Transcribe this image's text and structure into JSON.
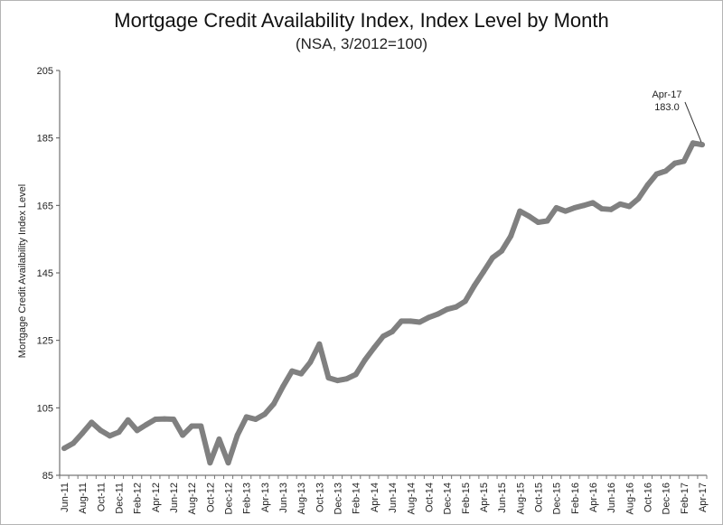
{
  "chart_data": {
    "type": "line",
    "title": "Mortgage Credit Availability Index, Index Level by Month",
    "subtitle": "(NSA, 3/2012=100)",
    "ylabel": "Mortgage Credit Availability Index Level",
    "xlabel": "",
    "ylim": [
      85,
      205
    ],
    "yticks": [
      85,
      105,
      125,
      145,
      165,
      185,
      205
    ],
    "grid": false,
    "x": [
      "Jun-11",
      "Jul-11",
      "Aug-11",
      "Sep-11",
      "Oct-11",
      "Nov-11",
      "Dec-11",
      "Jan-12",
      "Feb-12",
      "Mar-12",
      "Apr-12",
      "May-12",
      "Jun-12",
      "Jul-12",
      "Aug-12",
      "Sep-12",
      "Oct-12",
      "Nov-12",
      "Dec-12",
      "Jan-13",
      "Feb-13",
      "Mar-13",
      "Apr-13",
      "May-13",
      "Jun-13",
      "Jul-13",
      "Aug-13",
      "Sep-13",
      "Oct-13",
      "Nov-13",
      "Dec-13",
      "Jan-14",
      "Feb-14",
      "Mar-14",
      "Apr-14",
      "May-14",
      "Jun-14",
      "Jul-14",
      "Aug-14",
      "Sep-14",
      "Oct-14",
      "Nov-14",
      "Dec-14",
      "Jan-15",
      "Feb-15",
      "Mar-15",
      "Apr-15",
      "May-15",
      "Jun-15",
      "Jul-15",
      "Aug-15",
      "Sep-15",
      "Oct-15",
      "Nov-15",
      "Dec-15",
      "Jan-16",
      "Feb-16",
      "Mar-16",
      "Apr-16",
      "May-16",
      "Jun-16",
      "Jul-16",
      "Aug-16",
      "Sep-16",
      "Oct-16",
      "Nov-16",
      "Dec-16",
      "Jan-17",
      "Feb-17",
      "Mar-17",
      "Apr-17"
    ],
    "xtick_labels": [
      "Jun-11",
      "Aug-11",
      "Oct-11",
      "Dec-11",
      "Feb-12",
      "Apr-12",
      "Jun-12",
      "Aug-12",
      "Oct-12",
      "Dec-12",
      "Feb-13",
      "Apr-13",
      "Jun-13",
      "Aug-13",
      "Oct-13",
      "Dec-13",
      "Feb-14",
      "Apr-14",
      "Jun-14",
      "Aug-14",
      "Oct-14",
      "Dec-14",
      "Feb-15",
      "Apr-15",
      "Jun-15",
      "Aug-15",
      "Oct-15",
      "Dec-15",
      "Feb-16",
      "Apr-16",
      "Jun-16",
      "Aug-16",
      "Oct-16",
      "Dec-16",
      "Feb-17",
      "Apr-17"
    ],
    "series": [
      {
        "name": "",
        "color": "#808080",
        "values": [
          93.0,
          94.5,
          97.5,
          100.7,
          98.3,
          96.7,
          97.8,
          101.4,
          98.3,
          100.0,
          101.6,
          101.7,
          101.6,
          96.9,
          99.6,
          99.6,
          88.7,
          95.7,
          88.7,
          96.9,
          102.3,
          101.6,
          103.1,
          106.2,
          111.3,
          115.9,
          115.1,
          118.5,
          123.9,
          113.9,
          113.1,
          113.6,
          114.9,
          119.2,
          122.8,
          126.2,
          127.6,
          130.7,
          130.7,
          130.4,
          131.8,
          132.8,
          134.2,
          134.9,
          136.6,
          141.2,
          145.3,
          149.5,
          151.5,
          155.9,
          163.3,
          161.8,
          160.0,
          160.4,
          164.3,
          163.3,
          164.3,
          165.0,
          165.8,
          164.0,
          163.8,
          165.4,
          164.7,
          167.0,
          171.0,
          174.3,
          175.2,
          177.5,
          178.1,
          183.5,
          183.0
        ]
      }
    ],
    "annotation": {
      "x": "Apr-17",
      "line1": "Apr-17",
      "line2": "183.0"
    }
  }
}
